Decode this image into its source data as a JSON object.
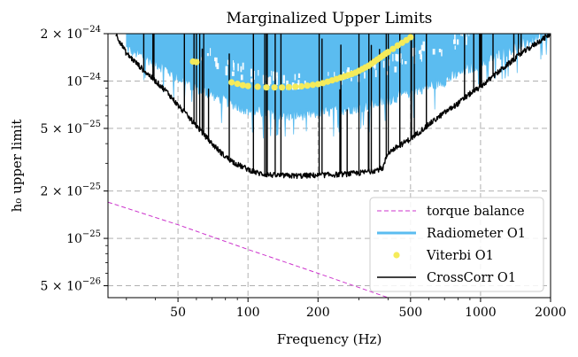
{
  "chart_data": {
    "type": "line",
    "title": "Marginalized Upper Limits",
    "xlabel": "Frequency (Hz)",
    "ylabel": "h₀ upper limit",
    "xscale": "log",
    "yscale": "log",
    "xlim": [
      25,
      2000
    ],
    "ylim": [
      4.2e-26,
      2e-24
    ],
    "grid": true,
    "legend_position": "bottom-right",
    "x_ticks": [
      {
        "value": 50,
        "label": "50"
      },
      {
        "value": 100,
        "label": "100"
      },
      {
        "value": 200,
        "label": "200"
      },
      {
        "value": 500,
        "label": "500"
      },
      {
        "value": 1000,
        "label": "1000"
      },
      {
        "value": 2000,
        "label": "2000"
      }
    ],
    "y_ticks": [
      {
        "value": 5e-26,
        "mant": "5 × 10",
        "exp": "−26"
      },
      {
        "value": 1e-25,
        "mant": "10",
        "exp": "−25"
      },
      {
        "value": 2e-25,
        "mant": "2 × 10",
        "exp": "−25"
      },
      {
        "value": 5e-25,
        "mant": "5 × 10",
        "exp": "−25"
      },
      {
        "value": 1e-24,
        "mant": "10",
        "exp": "−24"
      },
      {
        "value": 2e-24,
        "mant": "2 × 10",
        "exp": "−24"
      }
    ],
    "series": [
      {
        "name": "torque balance",
        "style": "dashed",
        "color": "#cc33cc",
        "x": [
          25,
          50,
          100,
          200,
          400,
          2000
        ],
        "y": [
          1.7e-25,
          1.22e-25,
          8.5e-26,
          6e-26,
          4.2e-26,
          1.9e-26
        ]
      },
      {
        "name": "Radiometer O1",
        "style": "band",
        "color": "#5bbcf0",
        "x": [
          30,
          40,
          50,
          60,
          80,
          100,
          150,
          200,
          300,
          400,
          500,
          700,
          1000,
          1500,
          2000
        ],
        "y_low": [
          1.6e-24,
          1.3e-24,
          1.05e-24,
          9e-25,
          7.5e-25,
          6.5e-25,
          6e-25,
          6.2e-25,
          6.8e-25,
          7.5e-25,
          8.5e-25,
          1e-24,
          1.3e-24,
          1.7e-24,
          2e-24
        ],
        "y_high": [
          2e-24,
          2e-24,
          2e-24,
          2e-24,
          2e-24,
          2e-24,
          2e-24,
          2e-24,
          2e-24,
          2e-24,
          2e-24,
          2e-24,
          2e-24,
          2e-24,
          2e-24
        ]
      },
      {
        "name": "Viterbi O1",
        "style": "markers",
        "color": "#f5eb5a",
        "x": [
          58,
          60,
          85,
          90,
          95,
          100,
          110,
          120,
          130,
          140,
          150,
          160,
          170,
          180,
          190,
          200,
          210,
          220,
          230,
          240,
          250,
          260,
          270,
          280,
          290,
          300,
          310,
          320,
          330,
          340,
          350,
          360,
          370,
          380,
          390,
          400,
          420,
          440,
          460,
          480,
          500
        ],
        "y": [
          1.33e-24,
          1.32e-24,
          9.8e-25,
          9.6e-25,
          9.4e-25,
          9.3e-25,
          9.2e-25,
          9.1e-25,
          9.1e-25,
          9.1e-25,
          9.15e-25,
          9.2e-25,
          9.25e-25,
          9.35e-25,
          9.45e-25,
          9.55e-25,
          9.7e-25,
          9.9e-25,
          1.01e-24,
          1.03e-24,
          1.05e-24,
          1.07e-24,
          1.09e-24,
          1.11e-24,
          1.13e-24,
          1.16e-24,
          1.19e-24,
          1.22e-24,
          1.25e-24,
          1.29e-24,
          1.33e-24,
          1.37e-24,
          1.41e-24,
          1.45e-24,
          1.49e-24,
          1.53e-24,
          1.6e-24,
          1.68e-24,
          1.75e-24,
          1.82e-24,
          1.9e-24
        ]
      },
      {
        "name": "CrossCorr O1",
        "style": "solid",
        "color": "#000000",
        "x": [
          27,
          30,
          35,
          40,
          45,
          50,
          60,
          70,
          80,
          90,
          100,
          110,
          120,
          130,
          150,
          170,
          200,
          250,
          300,
          350,
          380,
          400,
          500,
          600,
          700,
          800,
          900,
          1000,
          1200,
          1500,
          1800,
          2000
        ],
        "y": [
          2e-24,
          1.5e-24,
          1.2e-24,
          1e-24,
          8.5e-25,
          7e-25,
          5.2e-25,
          4e-25,
          3.3e-25,
          2.95e-25,
          2.75e-25,
          2.6e-25,
          2.55e-25,
          2.52e-25,
          2.5e-25,
          2.5e-25,
          2.52e-25,
          2.55e-25,
          2.6e-25,
          2.7e-25,
          2.8e-25,
          3.5e-25,
          4.3e-25,
          5.3e-25,
          6.3e-25,
          7.2e-25,
          8.3e-25,
          9.2e-25,
          1.15e-24,
          1.5e-24,
          1.8e-24,
          2e-24
        ]
      }
    ]
  }
}
